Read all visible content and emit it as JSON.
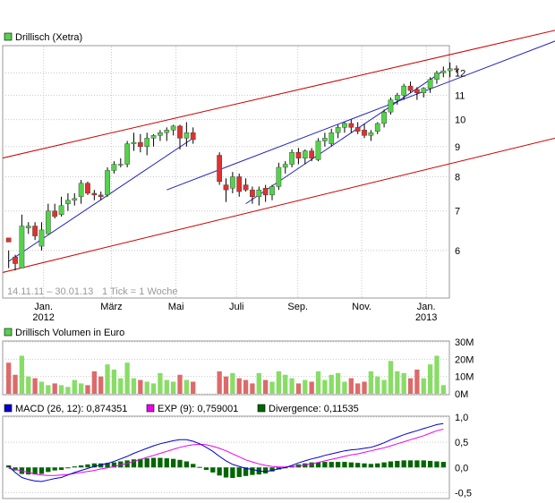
{
  "colors": {
    "up": "#55d24b",
    "down": "#e0322e",
    "wick": "#000000",
    "channel": "#cc0000",
    "trend": "#2222bb",
    "vol_up": "#88dd66",
    "vol_down": "#dd6a6a",
    "macd": "#0000cc",
    "exp": "#ee00ee",
    "divergence": "#006600",
    "grid": "#c8c8c8",
    "frame": "#999999"
  },
  "chart_data": [
    {
      "type": "candlestick",
      "title": "Drillisch (Xetra)",
      "range_label": "14.11.11 – 30.01.13",
      "tick_label": "1 Tick = 1 Woche",
      "x_ticks": [
        {
          "label": "Jan.",
          "sub": "2012",
          "week": 5.3
        },
        {
          "label": "März",
          "sub": "",
          "week": 15.6
        },
        {
          "label": "Mai",
          "sub": "",
          "week": 25.4
        },
        {
          "label": "Juli",
          "sub": "",
          "week": 34.6
        },
        {
          "label": "Sep.",
          "sub": "",
          "week": 43.9
        },
        {
          "label": "Nov.",
          "sub": "",
          "week": 53.6
        },
        {
          "label": "Jan.",
          "sub": "2013",
          "week": 63.4
        }
      ],
      "y_scale": "log",
      "ylim": [
        5.0,
        13.3
      ],
      "y_ticks": [
        6,
        7,
        8,
        9,
        10,
        11,
        12
      ],
      "weeks": 67,
      "candles": [
        [
          6.3,
          5.6,
          6.0,
          6.2
        ],
        [
          5.85,
          5.55,
          5.9,
          5.7
        ],
        [
          5.6,
          6.9,
          5.75,
          6.6
        ],
        [
          6.55,
          6.7,
          6.4,
          6.6
        ],
        [
          6.6,
          6.7,
          6.25,
          6.35
        ],
        [
          6.1,
          6.7,
          6.0,
          6.5
        ],
        [
          6.4,
          7.2,
          6.4,
          7.0
        ],
        [
          7.0,
          7.2,
          6.8,
          6.85
        ],
        [
          6.9,
          7.4,
          6.85,
          7.15
        ],
        [
          7.2,
          7.5,
          7.0,
          7.3
        ],
        [
          7.3,
          7.5,
          7.15,
          7.35
        ],
        [
          7.4,
          7.9,
          7.2,
          7.8
        ],
        [
          7.8,
          7.85,
          7.45,
          7.5
        ],
        [
          7.5,
          7.6,
          7.3,
          7.45
        ],
        [
          7.45,
          7.55,
          7.3,
          7.4
        ],
        [
          7.45,
          8.3,
          7.4,
          8.2
        ],
        [
          8.2,
          8.5,
          8.1,
          8.4
        ],
        [
          8.4,
          8.6,
          8.3,
          8.4
        ],
        [
          8.4,
          9.2,
          8.3,
          9.1
        ],
        [
          9.1,
          9.5,
          8.85,
          9.15
        ],
        [
          9.15,
          9.45,
          8.8,
          9.0
        ],
        [
          9.0,
          9.5,
          8.7,
          9.3
        ],
        [
          9.3,
          9.45,
          9.0,
          9.4
        ],
        [
          9.4,
          9.6,
          9.2,
          9.5
        ],
        [
          9.5,
          9.7,
          9.2,
          9.6
        ],
        [
          9.6,
          9.8,
          9.4,
          9.75
        ],
        [
          9.75,
          9.8,
          8.9,
          9.3
        ],
        [
          9.3,
          9.9,
          9.0,
          9.5
        ],
        [
          9.5,
          9.7,
          9.1,
          9.25
        ],
        null,
        null,
        null,
        [
          8.7,
          8.8,
          7.75,
          7.85
        ],
        [
          7.75,
          7.95,
          7.25,
          7.6
        ],
        [
          7.65,
          8.15,
          7.5,
          8.0
        ],
        [
          8.0,
          8.1,
          7.4,
          7.55
        ],
        [
          7.75,
          7.95,
          7.55,
          7.6
        ],
        [
          7.6,
          7.7,
          7.2,
          7.4
        ],
        [
          7.4,
          7.7,
          7.15,
          7.6
        ],
        [
          7.65,
          7.75,
          7.25,
          7.45
        ],
        [
          7.45,
          7.75,
          7.3,
          7.7
        ],
        [
          7.7,
          8.45,
          7.6,
          8.3
        ],
        [
          8.3,
          8.5,
          8.1,
          8.4
        ],
        [
          8.4,
          8.9,
          8.3,
          8.8
        ],
        [
          8.8,
          8.95,
          8.4,
          8.6
        ],
        [
          8.6,
          8.9,
          8.4,
          8.85
        ],
        [
          8.85,
          8.95,
          8.5,
          8.6
        ],
        [
          8.55,
          9.3,
          8.5,
          9.2
        ],
        [
          9.2,
          9.5,
          9.0,
          9.3
        ],
        [
          9.1,
          9.65,
          9.0,
          9.5
        ],
        [
          9.5,
          9.8,
          9.3,
          9.7
        ],
        [
          9.7,
          9.9,
          9.5,
          9.85
        ],
        [
          9.85,
          10.0,
          9.5,
          9.7
        ],
        [
          9.7,
          9.9,
          9.45,
          9.55
        ],
        [
          9.6,
          9.85,
          9.3,
          9.4
        ],
        [
          9.4,
          9.6,
          9.2,
          9.5
        ],
        [
          9.55,
          9.9,
          9.45,
          9.85
        ],
        [
          9.85,
          10.4,
          9.7,
          10.3
        ],
        [
          10.3,
          10.9,
          10.2,
          10.8
        ],
        [
          10.8,
          11.1,
          10.6,
          11.0
        ],
        [
          11.0,
          11.5,
          10.8,
          11.4
        ],
        [
          11.4,
          11.6,
          11.1,
          11.2
        ],
        [
          11.25,
          11.35,
          10.8,
          11.1
        ],
        [
          11.1,
          11.35,
          10.9,
          11.3
        ],
        [
          11.3,
          11.8,
          11.1,
          11.7
        ],
        [
          11.7,
          12.1,
          11.5,
          12.0
        ],
        [
          12.0,
          12.3,
          11.8,
          12.1
        ],
        [
          12.1,
          12.5,
          11.8,
          12.2
        ],
        [
          12.2,
          12.35,
          12.0,
          12.15
        ]
      ],
      "channel_lines": [
        {
          "name": "upper",
          "start": [
            -4,
            8.45
          ],
          "end": [
            88,
            14.6
          ]
        },
        {
          "name": "lower",
          "start": [
            -4,
            5.4
          ],
          "end": [
            88,
            9.6
          ]
        }
      ],
      "trend_lines": [
        {
          "name": "trend-1",
          "start": [
            0,
            5.75
          ],
          "end": [
            28,
            9.3
          ]
        },
        {
          "name": "trend-2",
          "start": [
            36,
            7.2
          ],
          "end": [
            66,
            12.1
          ]
        },
        {
          "name": "trend-long",
          "start": [
            24,
            7.6
          ],
          "end": [
            86,
            14.0
          ]
        }
      ]
    },
    {
      "type": "bar",
      "title": "Drillisch Volumen in Euro",
      "ylim": [
        0,
        30
      ],
      "y_ticks": [
        {
          "value": 0,
          "label": "0M"
        },
        {
          "value": 10,
          "label": "10M"
        },
        {
          "value": 20,
          "label": "20M"
        },
        {
          "value": 30,
          "label": "30M"
        }
      ],
      "values": [
        18,
        11,
        22,
        10,
        9,
        7,
        5,
        6,
        5,
        4,
        8,
        6,
        5,
        13,
        10,
        17,
        14,
        9,
        18,
        9,
        8,
        7,
        6,
        12,
        8,
        7,
        11,
        8,
        7,
        0,
        0,
        0,
        13,
        10,
        12,
        9,
        8,
        6,
        12,
        8,
        7,
        13,
        11,
        9,
        6,
        8,
        7,
        13,
        8,
        11,
        12,
        7,
        9,
        6,
        7,
        13,
        10,
        8,
        19,
        13,
        12,
        9,
        14,
        9,
        17,
        22,
        5
      ]
    },
    {
      "type": "line+bar",
      "title": "MACD",
      "legend": [
        {
          "label": "MACD (26, 12): 0,874351",
          "color_key": "macd"
        },
        {
          "label": "EXP (9): 0,759001",
          "color_key": "exp"
        },
        {
          "label": "Divergence: 0,11535",
          "color_key": "divergence"
        }
      ],
      "ylim": [
        -0.6,
        1.0
      ],
      "y_ticks": [
        {
          "value": 1.0,
          "label": "1,0"
        },
        {
          "value": 0.5,
          "label": "0,5"
        },
        {
          "value": 0.0,
          "label": "0,0"
        },
        {
          "value": -0.5,
          "label": "-0,5"
        }
      ],
      "macd": [
        0.02,
        -0.1,
        -0.2,
        -0.24,
        -0.27,
        -0.28,
        -0.25,
        -0.22,
        -0.2,
        -0.15,
        -0.1,
        -0.06,
        -0.02,
        0.02,
        0.05,
        0.08,
        0.12,
        0.17,
        0.22,
        0.28,
        0.33,
        0.38,
        0.43,
        0.47,
        0.5,
        0.53,
        0.55,
        0.55,
        0.52,
        0.47,
        0.4,
        0.32,
        0.22,
        0.13,
        0.06,
        0.02,
        -0.02,
        -0.04,
        -0.07,
        -0.08,
        -0.06,
        -0.03,
        0.0,
        0.04,
        0.09,
        0.13,
        0.17,
        0.2,
        0.24,
        0.27,
        0.3,
        0.33,
        0.35,
        0.36,
        0.38,
        0.4,
        0.44,
        0.49,
        0.55,
        0.6,
        0.65,
        0.69,
        0.73,
        0.77,
        0.81,
        0.85,
        0.87
      ],
      "exp": [
        -0.02,
        -0.04,
        -0.07,
        -0.1,
        -0.13,
        -0.15,
        -0.16,
        -0.16,
        -0.15,
        -0.14,
        -0.12,
        -0.1,
        -0.08,
        -0.06,
        -0.03,
        -0.01,
        0.02,
        0.05,
        0.08,
        0.12,
        0.16,
        0.2,
        0.24,
        0.28,
        0.32,
        0.36,
        0.4,
        0.43,
        0.45,
        0.46,
        0.45,
        0.42,
        0.38,
        0.33,
        0.27,
        0.21,
        0.15,
        0.11,
        0.07,
        0.04,
        0.02,
        0.01,
        0.01,
        0.02,
        0.03,
        0.05,
        0.07,
        0.1,
        0.13,
        0.16,
        0.19,
        0.22,
        0.25,
        0.27,
        0.3,
        0.33,
        0.36,
        0.39,
        0.43,
        0.47,
        0.51,
        0.55,
        0.59,
        0.63,
        0.68,
        0.73,
        0.76
      ],
      "divergence": [
        0.04,
        -0.06,
        -0.13,
        -0.14,
        -0.14,
        -0.13,
        -0.09,
        -0.06,
        -0.05,
        -0.01,
        0.02,
        0.04,
        0.06,
        0.08,
        0.08,
        0.09,
        0.1,
        0.12,
        0.14,
        0.16,
        0.17,
        0.18,
        0.19,
        0.19,
        0.18,
        0.17,
        0.15,
        0.12,
        0.07,
        0.01,
        -0.05,
        -0.1,
        -0.16,
        -0.2,
        -0.21,
        -0.19,
        -0.17,
        -0.15,
        -0.14,
        -0.12,
        -0.08,
        -0.04,
        -0.01,
        0.02,
        0.06,
        0.08,
        0.1,
        0.1,
        0.11,
        0.11,
        0.11,
        0.11,
        0.1,
        0.09,
        0.08,
        0.07,
        0.08,
        0.1,
        0.12,
        0.13,
        0.14,
        0.14,
        0.14,
        0.14,
        0.13,
        0.12,
        0.11
      ]
    }
  ]
}
